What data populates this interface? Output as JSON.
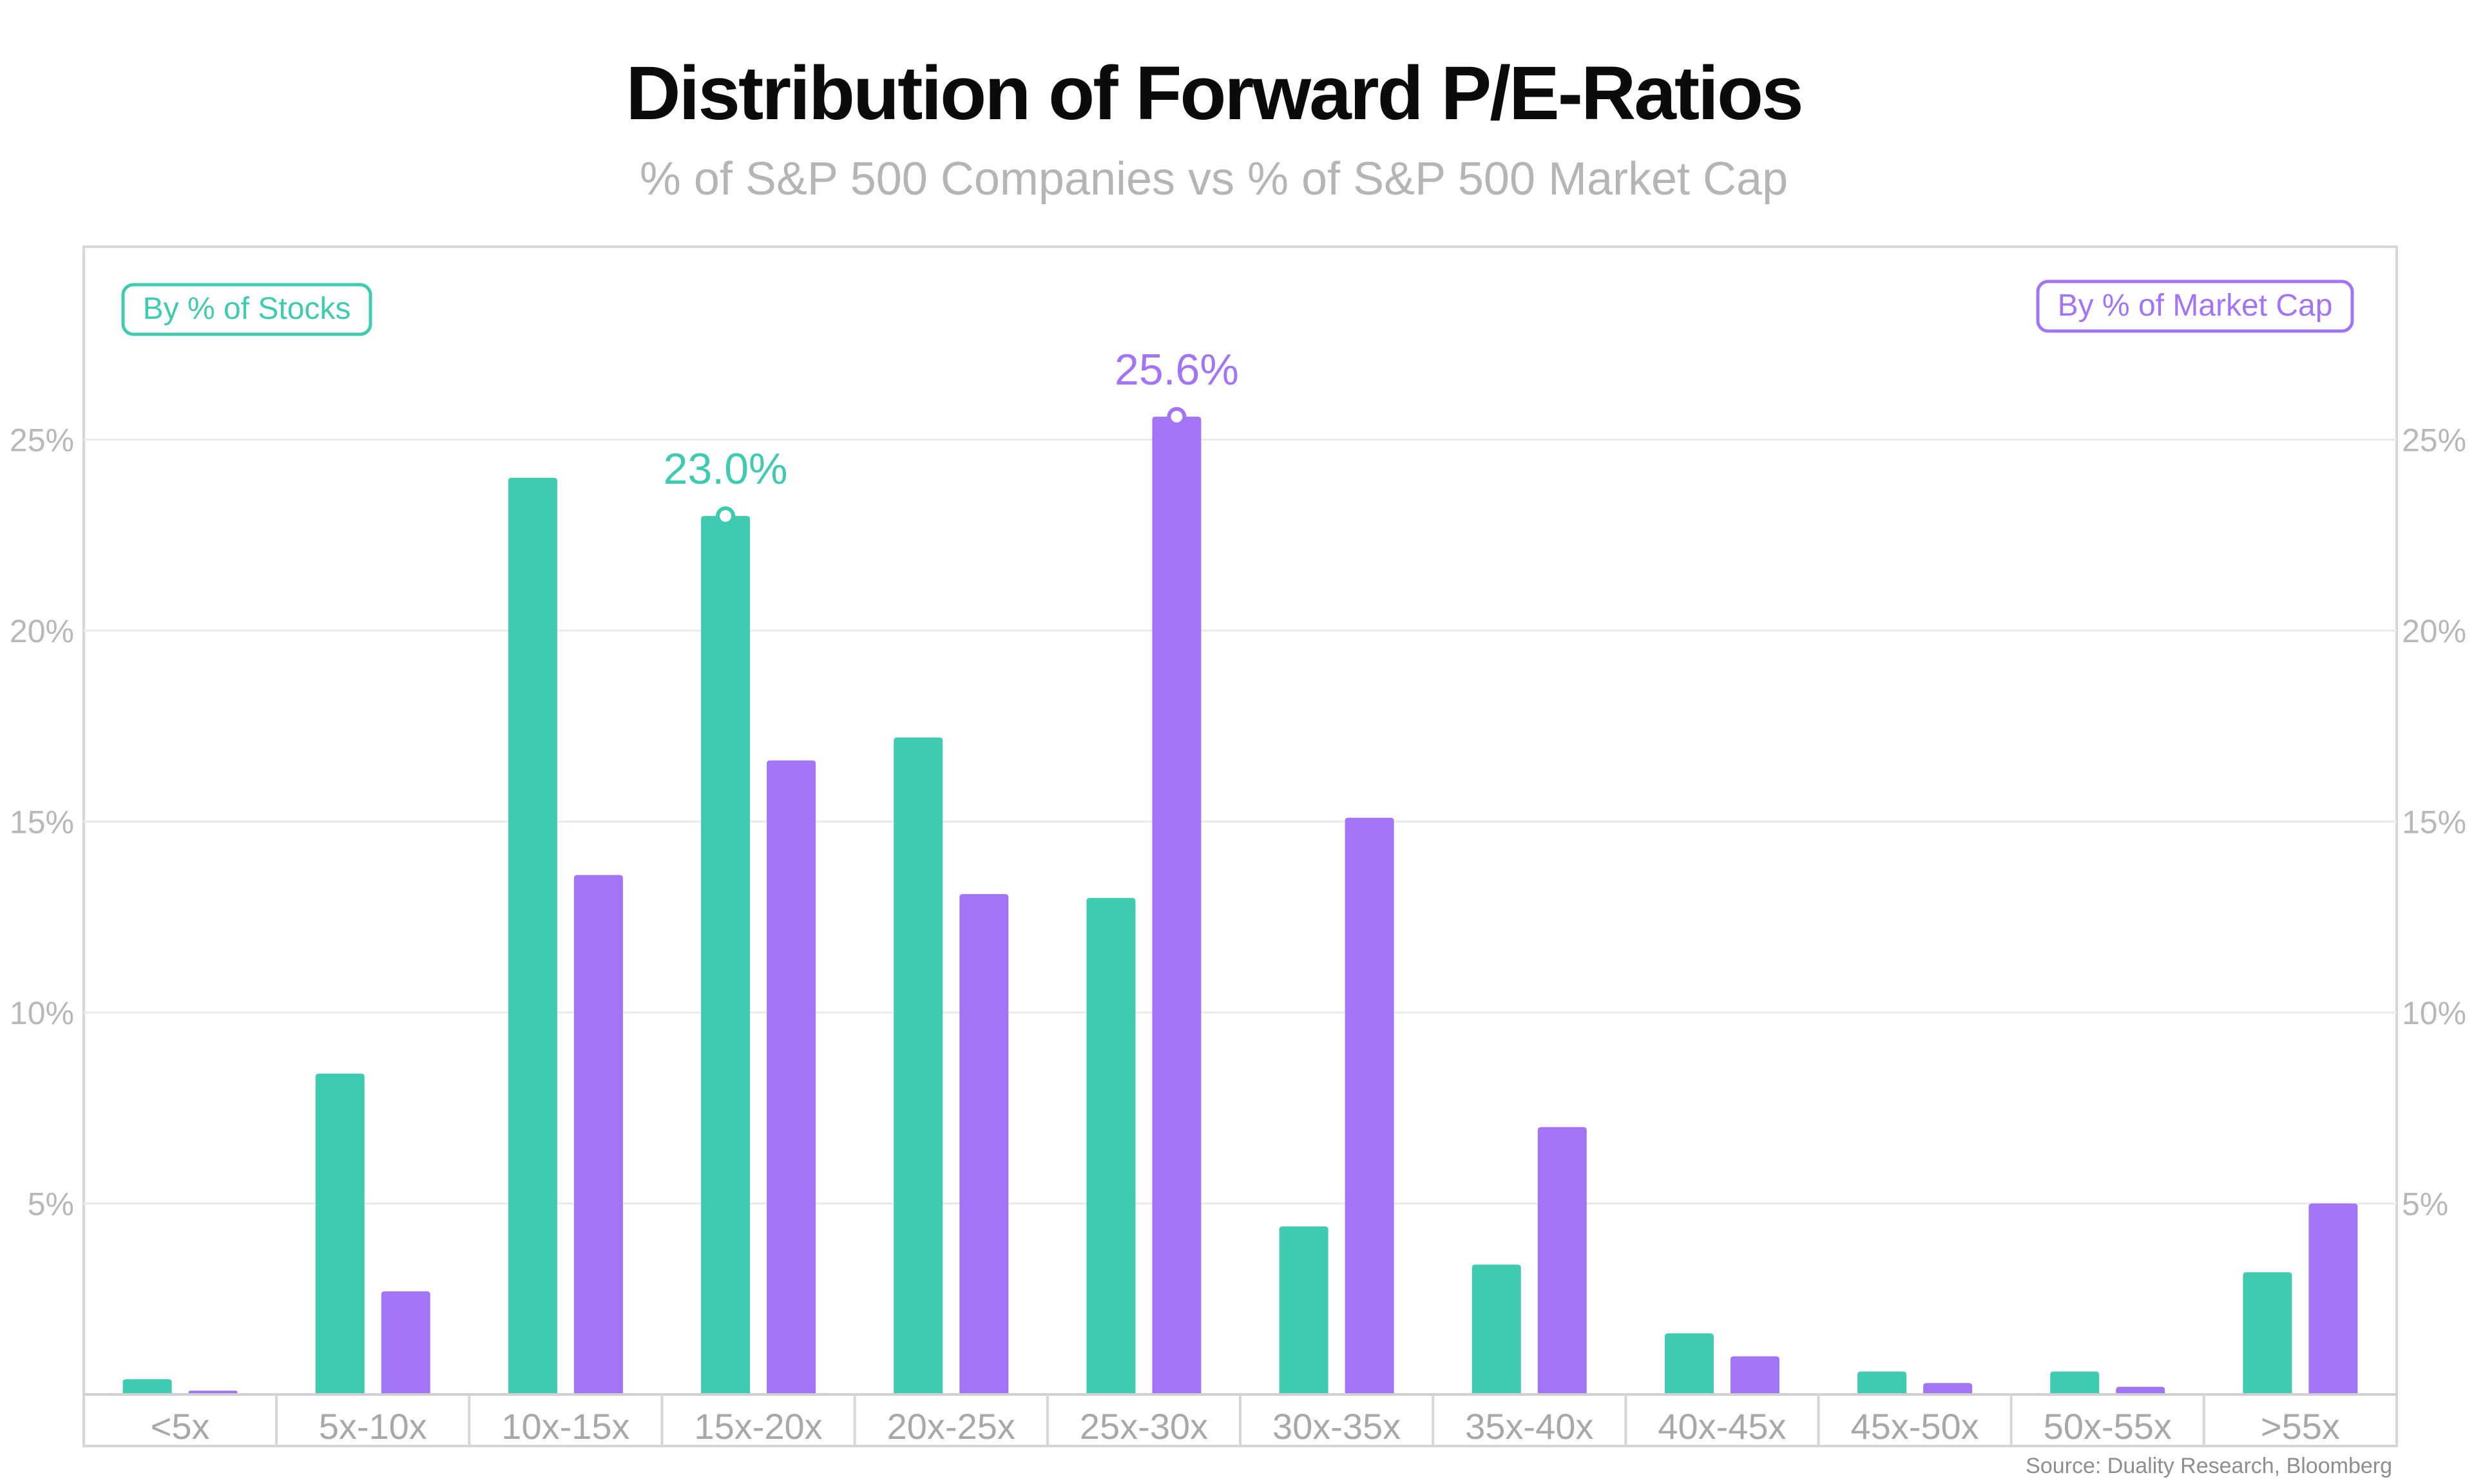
{
  "chart_data": {
    "type": "bar",
    "title": "Distribution of Forward P/E-Ratios",
    "subtitle": "% of S&P 500 Companies vs % of S&P 500 Market Cap",
    "source": "Source: Duality Research, Bloomberg",
    "categories": [
      "<5x",
      "5x-10x",
      "10x-15x",
      "15x-20x",
      "20x-25x",
      "25x-30x",
      "30x-35x",
      "35x-40x",
      "40x-45x",
      "45x-50x",
      "50x-55x",
      ">55x"
    ],
    "series": [
      {
        "name": "By % of Stocks",
        "color": "#3ECBAF",
        "values": [
          0.4,
          8.4,
          24.0,
          23.0,
          17.2,
          13.0,
          4.4,
          3.4,
          1.6,
          0.6,
          0.6,
          3.2
        ]
      },
      {
        "name": "By % of Market Cap",
        "color": "#A175F6",
        "values": [
          0.1,
          2.7,
          13.6,
          16.6,
          13.1,
          25.6,
          15.1,
          7.0,
          1.0,
          0.3,
          0.2,
          5.0
        ]
      }
    ],
    "ylim": [
      0,
      30
    ],
    "y_ticks": [
      5,
      10,
      15,
      20,
      25
    ],
    "y_tick_labels": [
      "5%",
      "10%",
      "15%",
      "20%",
      "25%"
    ],
    "xlabel": "",
    "ylabel": "",
    "grid": true,
    "legend": {
      "left": "By % of Stocks",
      "right": "By % of Market Cap"
    },
    "annotations": [
      {
        "series": 0,
        "category": "15x-20x",
        "label": "23.0%"
      },
      {
        "series": 1,
        "category": "25x-30x",
        "label": "25.6%"
      }
    ]
  }
}
